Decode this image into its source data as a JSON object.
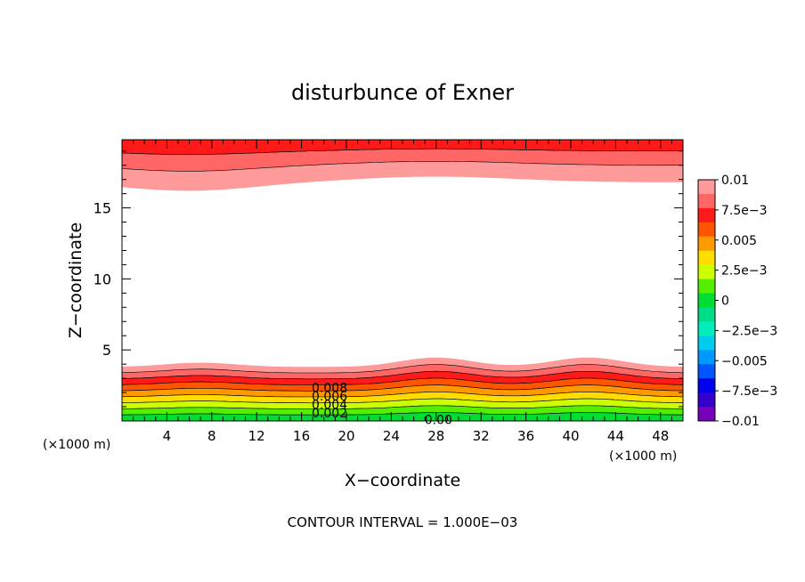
{
  "chart_data": {
    "type": "contour",
    "title": "disturbunce of Exner",
    "xlabel": "X−coordinate",
    "ylabel": "Z−coordinate",
    "x_unit_left": "(×1000 m)",
    "x_unit_right": "(×1000 m)",
    "xlim": [
      0,
      50
    ],
    "ylim": [
      0,
      19.8
    ],
    "x_ticks": [
      "4",
      "8",
      "12",
      "16",
      "20",
      "24",
      "28",
      "32",
      "36",
      "40",
      "44",
      "48"
    ],
    "y_ticks": [
      "5",
      "10",
      "15"
    ],
    "footer": "CONTOUR INTERVAL = 1.000E−03",
    "contour_labels": [
      "0.008",
      "0.006",
      "0.004",
      "0.002",
      "0.00"
    ],
    "colorbar": {
      "ticks": [
        "0.01",
        "7.5e−3",
        "0.005",
        "2.5e−3",
        "0",
        "−2.5e−3",
        "−0.005",
        "−7.5e−3",
        "−0.01"
      ],
      "colors": [
        "#ff9a9a",
        "#ff6666",
        "#ff1a1a",
        "#ff5500",
        "#ff9900",
        "#ffdd00",
        "#ccff00",
        "#55ee00",
        "#00dd33",
        "#00dd88",
        "#00eebb",
        "#00ccee",
        "#0099ff",
        "#0055ff",
        "#0000ee",
        "#3300cc",
        "#7700bb"
      ]
    },
    "surface_bumps_x": [
      7,
      28,
      41.5
    ],
    "lower_layer_top_z": 3.8,
    "upper_layer_bottom_z": 16.8
  }
}
